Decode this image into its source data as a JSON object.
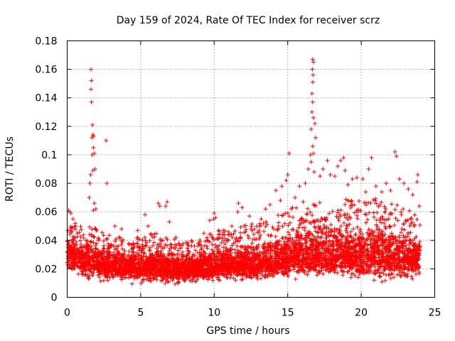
{
  "chart_data": {
    "type": "scatter",
    "title": "Day 159 of 2024, Rate Of TEC Index for receiver scrz",
    "xlabel": "GPS time / hours",
    "ylabel": "ROTI / TECUs",
    "xlim": [
      0,
      25
    ],
    "ylim": [
      0,
      0.18
    ],
    "xticks": [
      0,
      5,
      10,
      15,
      20,
      25
    ],
    "xtick_labels": [
      "0",
      "5",
      "10",
      "15",
      "20",
      "25"
    ],
    "yticks": [
      0,
      0.02,
      0.04,
      0.06,
      0.08,
      0.1,
      0.12,
      0.14,
      0.16,
      0.18
    ],
    "ytick_labels": [
      "0",
      "0.02",
      "0.04",
      "0.06",
      "0.08",
      "0.1",
      "0.12",
      "0.14",
      "0.16",
      "0.18"
    ],
    "grid": true,
    "marker": "+",
    "color": "#ff0000",
    "series": [
      {
        "name": "ROTI",
        "points": [
          [
            1.62,
            0.16
          ],
          [
            1.65,
            0.152
          ],
          [
            1.62,
            0.146
          ],
          [
            1.65,
            0.137
          ],
          [
            1.72,
            0.121
          ],
          [
            1.75,
            0.114
          ],
          [
            1.68,
            0.112
          ],
          [
            1.8,
            0.113
          ],
          [
            1.78,
            0.105
          ],
          [
            1.85,
            0.101
          ],
          [
            1.7,
            0.1
          ],
          [
            1.9,
            0.09
          ],
          [
            1.75,
            0.089
          ],
          [
            1.6,
            0.086
          ],
          [
            1.55,
            0.08
          ],
          [
            2.65,
            0.11
          ],
          [
            2.7,
            0.08
          ],
          [
            1.5,
            0.07
          ],
          [
            1.85,
            0.066
          ],
          [
            1.78,
            0.061
          ],
          [
            0.1,
            0.061
          ],
          [
            0.25,
            0.059
          ],
          [
            0.4,
            0.055
          ],
          [
            0.55,
            0.052
          ],
          [
            1.95,
            0.062
          ],
          [
            3.25,
            0.05
          ],
          [
            3.7,
            0.048
          ],
          [
            4.8,
            0.047
          ],
          [
            5.3,
            0.058
          ],
          [
            5.5,
            0.05
          ],
          [
            6.2,
            0.066
          ],
          [
            6.3,
            0.064
          ],
          [
            6.8,
            0.067
          ],
          [
            6.7,
            0.064
          ],
          [
            6.95,
            0.053
          ],
          [
            7.4,
            0.042
          ],
          [
            8.5,
            0.039
          ],
          [
            9.3,
            0.045
          ],
          [
            9.7,
            0.054
          ],
          [
            9.95,
            0.055
          ],
          [
            10.0,
            0.059
          ],
          [
            10.1,
            0.056
          ],
          [
            10.3,
            0.047
          ],
          [
            10.6,
            0.044
          ],
          [
            11.2,
            0.05
          ],
          [
            11.6,
            0.06
          ],
          [
            11.65,
            0.066
          ],
          [
            11.9,
            0.063
          ],
          [
            12.4,
            0.057
          ],
          [
            12.9,
            0.05
          ],
          [
            13.2,
            0.055
          ],
          [
            13.5,
            0.062
          ],
          [
            13.8,
            0.065
          ],
          [
            14.2,
            0.075
          ],
          [
            14.5,
            0.068
          ],
          [
            14.6,
            0.078
          ],
          [
            14.9,
            0.082
          ],
          [
            15.0,
            0.086
          ],
          [
            15.1,
            0.101
          ],
          [
            15.5,
            0.07
          ],
          [
            15.8,
            0.078
          ],
          [
            16.05,
            0.067
          ],
          [
            16.2,
            0.08
          ],
          [
            16.4,
            0.09
          ],
          [
            16.55,
            0.1
          ],
          [
            16.7,
            0.167
          ],
          [
            16.75,
            0.165
          ],
          [
            16.68,
            0.16
          ],
          [
            16.72,
            0.156
          ],
          [
            16.7,
            0.151
          ],
          [
            16.65,
            0.143
          ],
          [
            16.7,
            0.137
          ],
          [
            16.65,
            0.13
          ],
          [
            16.75,
            0.126
          ],
          [
            16.85,
            0.122
          ],
          [
            16.6,
            0.118
          ],
          [
            16.9,
            0.112
          ],
          [
            16.7,
            0.106
          ],
          [
            16.75,
            0.101
          ],
          [
            16.6,
            0.095
          ],
          [
            16.8,
            0.088
          ],
          [
            17.2,
            0.085
          ],
          [
            17.4,
            0.09
          ],
          [
            17.7,
            0.096
          ],
          [
            17.9,
            0.086
          ],
          [
            18.2,
            0.085
          ],
          [
            18.4,
            0.092
          ],
          [
            18.6,
            0.096
          ],
          [
            18.8,
            0.098
          ],
          [
            18.9,
            0.089
          ],
          [
            19.1,
            0.079
          ],
          [
            19.4,
            0.083
          ],
          [
            19.7,
            0.084
          ],
          [
            20.1,
            0.083
          ],
          [
            20.3,
            0.074
          ],
          [
            20.5,
            0.09
          ],
          [
            20.7,
            0.098
          ],
          [
            21.0,
            0.078
          ],
          [
            21.4,
            0.074
          ],
          [
            21.7,
            0.08
          ],
          [
            22.0,
            0.075
          ],
          [
            22.3,
            0.102
          ],
          [
            22.4,
            0.099
          ],
          [
            22.6,
            0.083
          ],
          [
            22.9,
            0.08
          ],
          [
            23.2,
            0.076
          ],
          [
            23.5,
            0.072
          ],
          [
            23.8,
            0.081
          ],
          [
            23.85,
            0.086
          ],
          [
            23.95,
            0.064
          ]
        ]
      }
    ],
    "dense_band": {
      "description": "continuous baseline band of points from 0 to 24 h",
      "x_range": [
        0,
        24
      ],
      "envelope": [
        [
          0,
          0.012,
          0.03,
          0.046
        ],
        [
          2,
          0.01,
          0.025,
          0.044
        ],
        [
          4,
          0.009,
          0.021,
          0.036
        ],
        [
          6,
          0.008,
          0.021,
          0.04
        ],
        [
          8,
          0.008,
          0.02,
          0.034
        ],
        [
          10,
          0.01,
          0.021,
          0.04
        ],
        [
          12,
          0.011,
          0.023,
          0.044
        ],
        [
          14,
          0.011,
          0.024,
          0.048
        ],
        [
          15,
          0.012,
          0.028,
          0.055
        ],
        [
          17,
          0.012,
          0.03,
          0.058
        ],
        [
          19,
          0.011,
          0.03,
          0.06
        ],
        [
          21,
          0.01,
          0.029,
          0.06
        ],
        [
          23,
          0.01,
          0.028,
          0.055
        ],
        [
          24,
          0.01,
          0.027,
          0.05
        ]
      ]
    }
  }
}
